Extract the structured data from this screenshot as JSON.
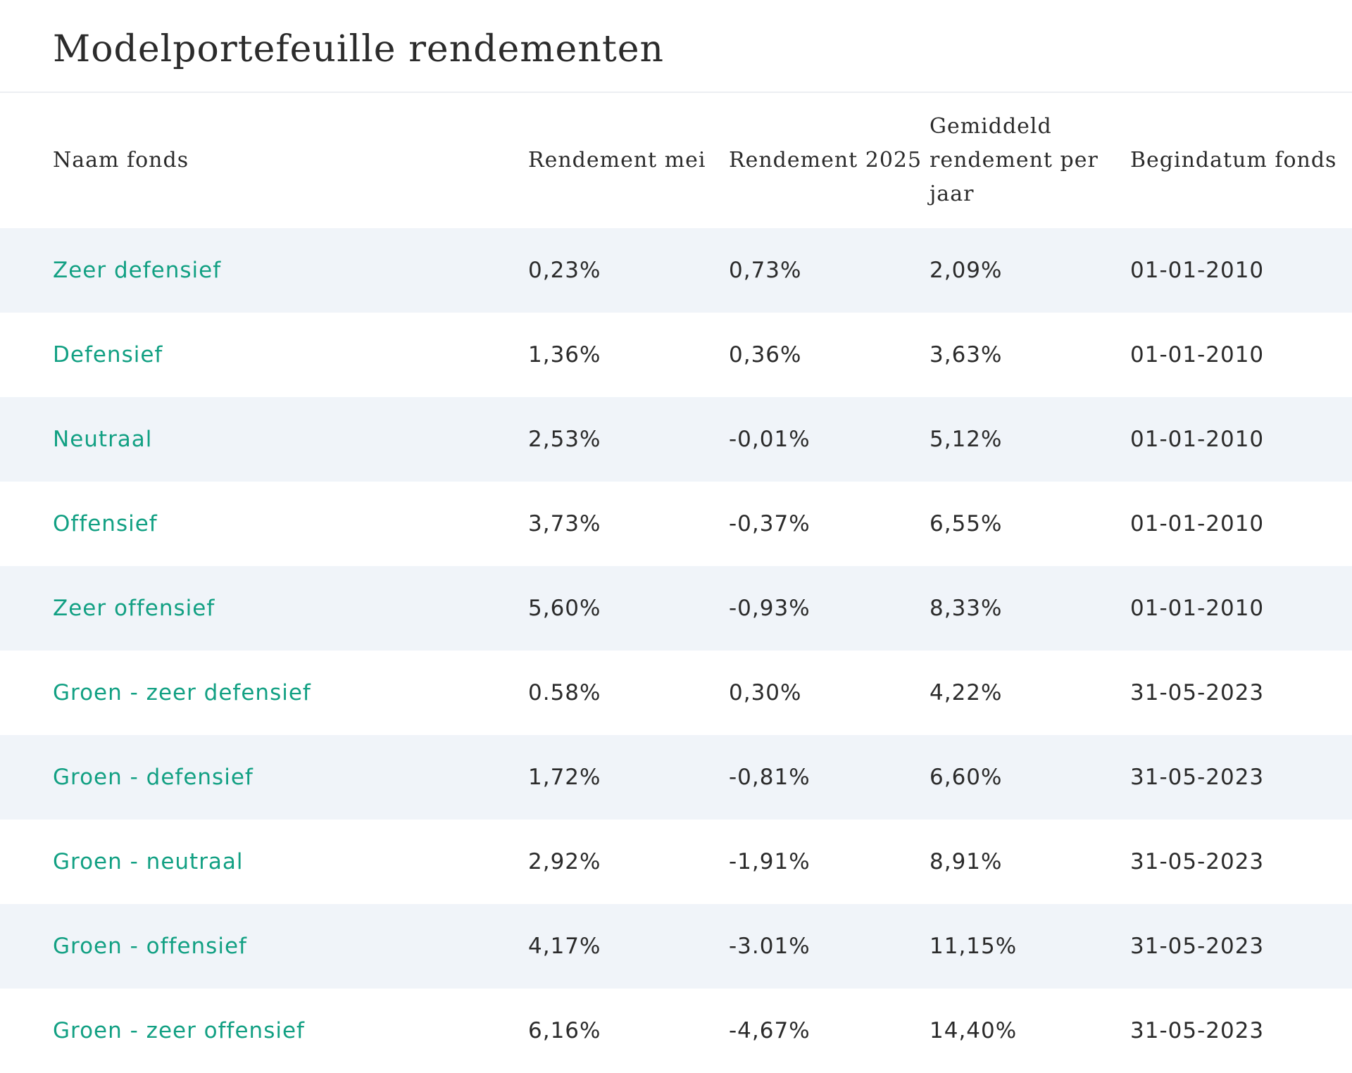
{
  "page": {
    "title": "Modelportefeuille rendementen"
  },
  "table": {
    "headers": [
      "Naam fonds",
      "Rendement mei",
      "Rendement 2025",
      "Gemiddeld rendement per jaar",
      "Begindatum fonds"
    ],
    "rows": [
      {
        "name": "Zeer defensief",
        "may": "0,23%",
        "ytd": "0,73%",
        "avg": "2,09%",
        "start": "01-01-2010"
      },
      {
        "name": "Defensief",
        "may": "1,36%",
        "ytd": "0,36%",
        "avg": "3,63%",
        "start": "01-01-2010"
      },
      {
        "name": "Neutraal",
        "may": "2,53%",
        "ytd": "-0,01%",
        "avg": "5,12%",
        "start": "01-01-2010"
      },
      {
        "name": "Offensief",
        "may": "3,73%",
        "ytd": "-0,37%",
        "avg": "6,55%",
        "start": "01-01-2010"
      },
      {
        "name": "Zeer offensief",
        "may": "5,60%",
        "ytd": "-0,93%",
        "avg": "8,33%",
        "start": "01-01-2010"
      },
      {
        "name": "Groen - zeer defensief",
        "may": "0.58%",
        "ytd": "0,30%",
        "avg": "4,22%",
        "start": "31-05-2023"
      },
      {
        "name": "Groen - defensief",
        "may": "1,72%",
        "ytd": "-0,81%",
        "avg": "6,60%",
        "start": "31-05-2023"
      },
      {
        "name": "Groen - neutraal",
        "may": "2,92%",
        "ytd": "-1,91%",
        "avg": "8,91%",
        "start": "31-05-2023"
      },
      {
        "name": "Groen - offensief",
        "may": "4,17%",
        "ytd": "-3.01%",
        "avg": "11,15%",
        "start": "31-05-2023"
      },
      {
        "name": "Groen - zeer offensief",
        "may": "6,16%",
        "ytd": "-4,67%",
        "avg": "14,40%",
        "start": "31-05-2023"
      }
    ]
  },
  "colors": {
    "link": "#12a083",
    "text": "#2b2b2b",
    "stripe": "#f0f4f9",
    "divider": "#eceff2"
  }
}
